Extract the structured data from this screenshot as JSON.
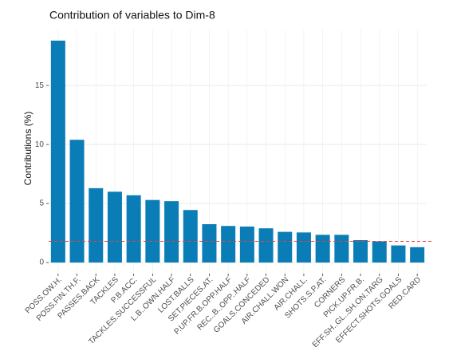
{
  "chart_data": {
    "type": "bar",
    "title": "Contribution of variables to Dim-8",
    "y_label": "Contributions (%)",
    "categories": [
      "POSS.OW.H.",
      "POSS.FIN.TH.F.",
      "PASSES.BACK",
      "TACKLES",
      "P.B.ACC.",
      "TACKLES.SUCCESSFUL",
      "L.B..OWN.HALF",
      "LOST.BALLS",
      "SET.PIECES.AT.",
      "P.UP.FR.B.OPP.HALF",
      "REC..B..OPP..HALF",
      "GOALS.CONCEDED",
      "AIR.CHALL.WON",
      "AIR.CHALL.",
      "SHOTS.S.P.AT.",
      "CORNERS",
      "PICK.UP.FR.B.",
      "EFF.SH..GL..SH.ON.TARG",
      "EFFECT.SHOTS.GOALS",
      "RED.CARD"
    ],
    "values": [
      18.8,
      10.4,
      6.3,
      6.0,
      5.7,
      5.3,
      5.2,
      4.45,
      3.25,
      3.1,
      3.05,
      2.9,
      2.6,
      2.55,
      2.35,
      2.35,
      1.9,
      1.8,
      1.45,
      1.3
    ],
    "color": "#0b7db6",
    "reference_line": {
      "value": 1.8,
      "color": "#e8423a"
    },
    "ylim": [
      -0.94,
      19.74
    ],
    "yticks": [
      0,
      5,
      10,
      15
    ],
    "grid": true
  }
}
